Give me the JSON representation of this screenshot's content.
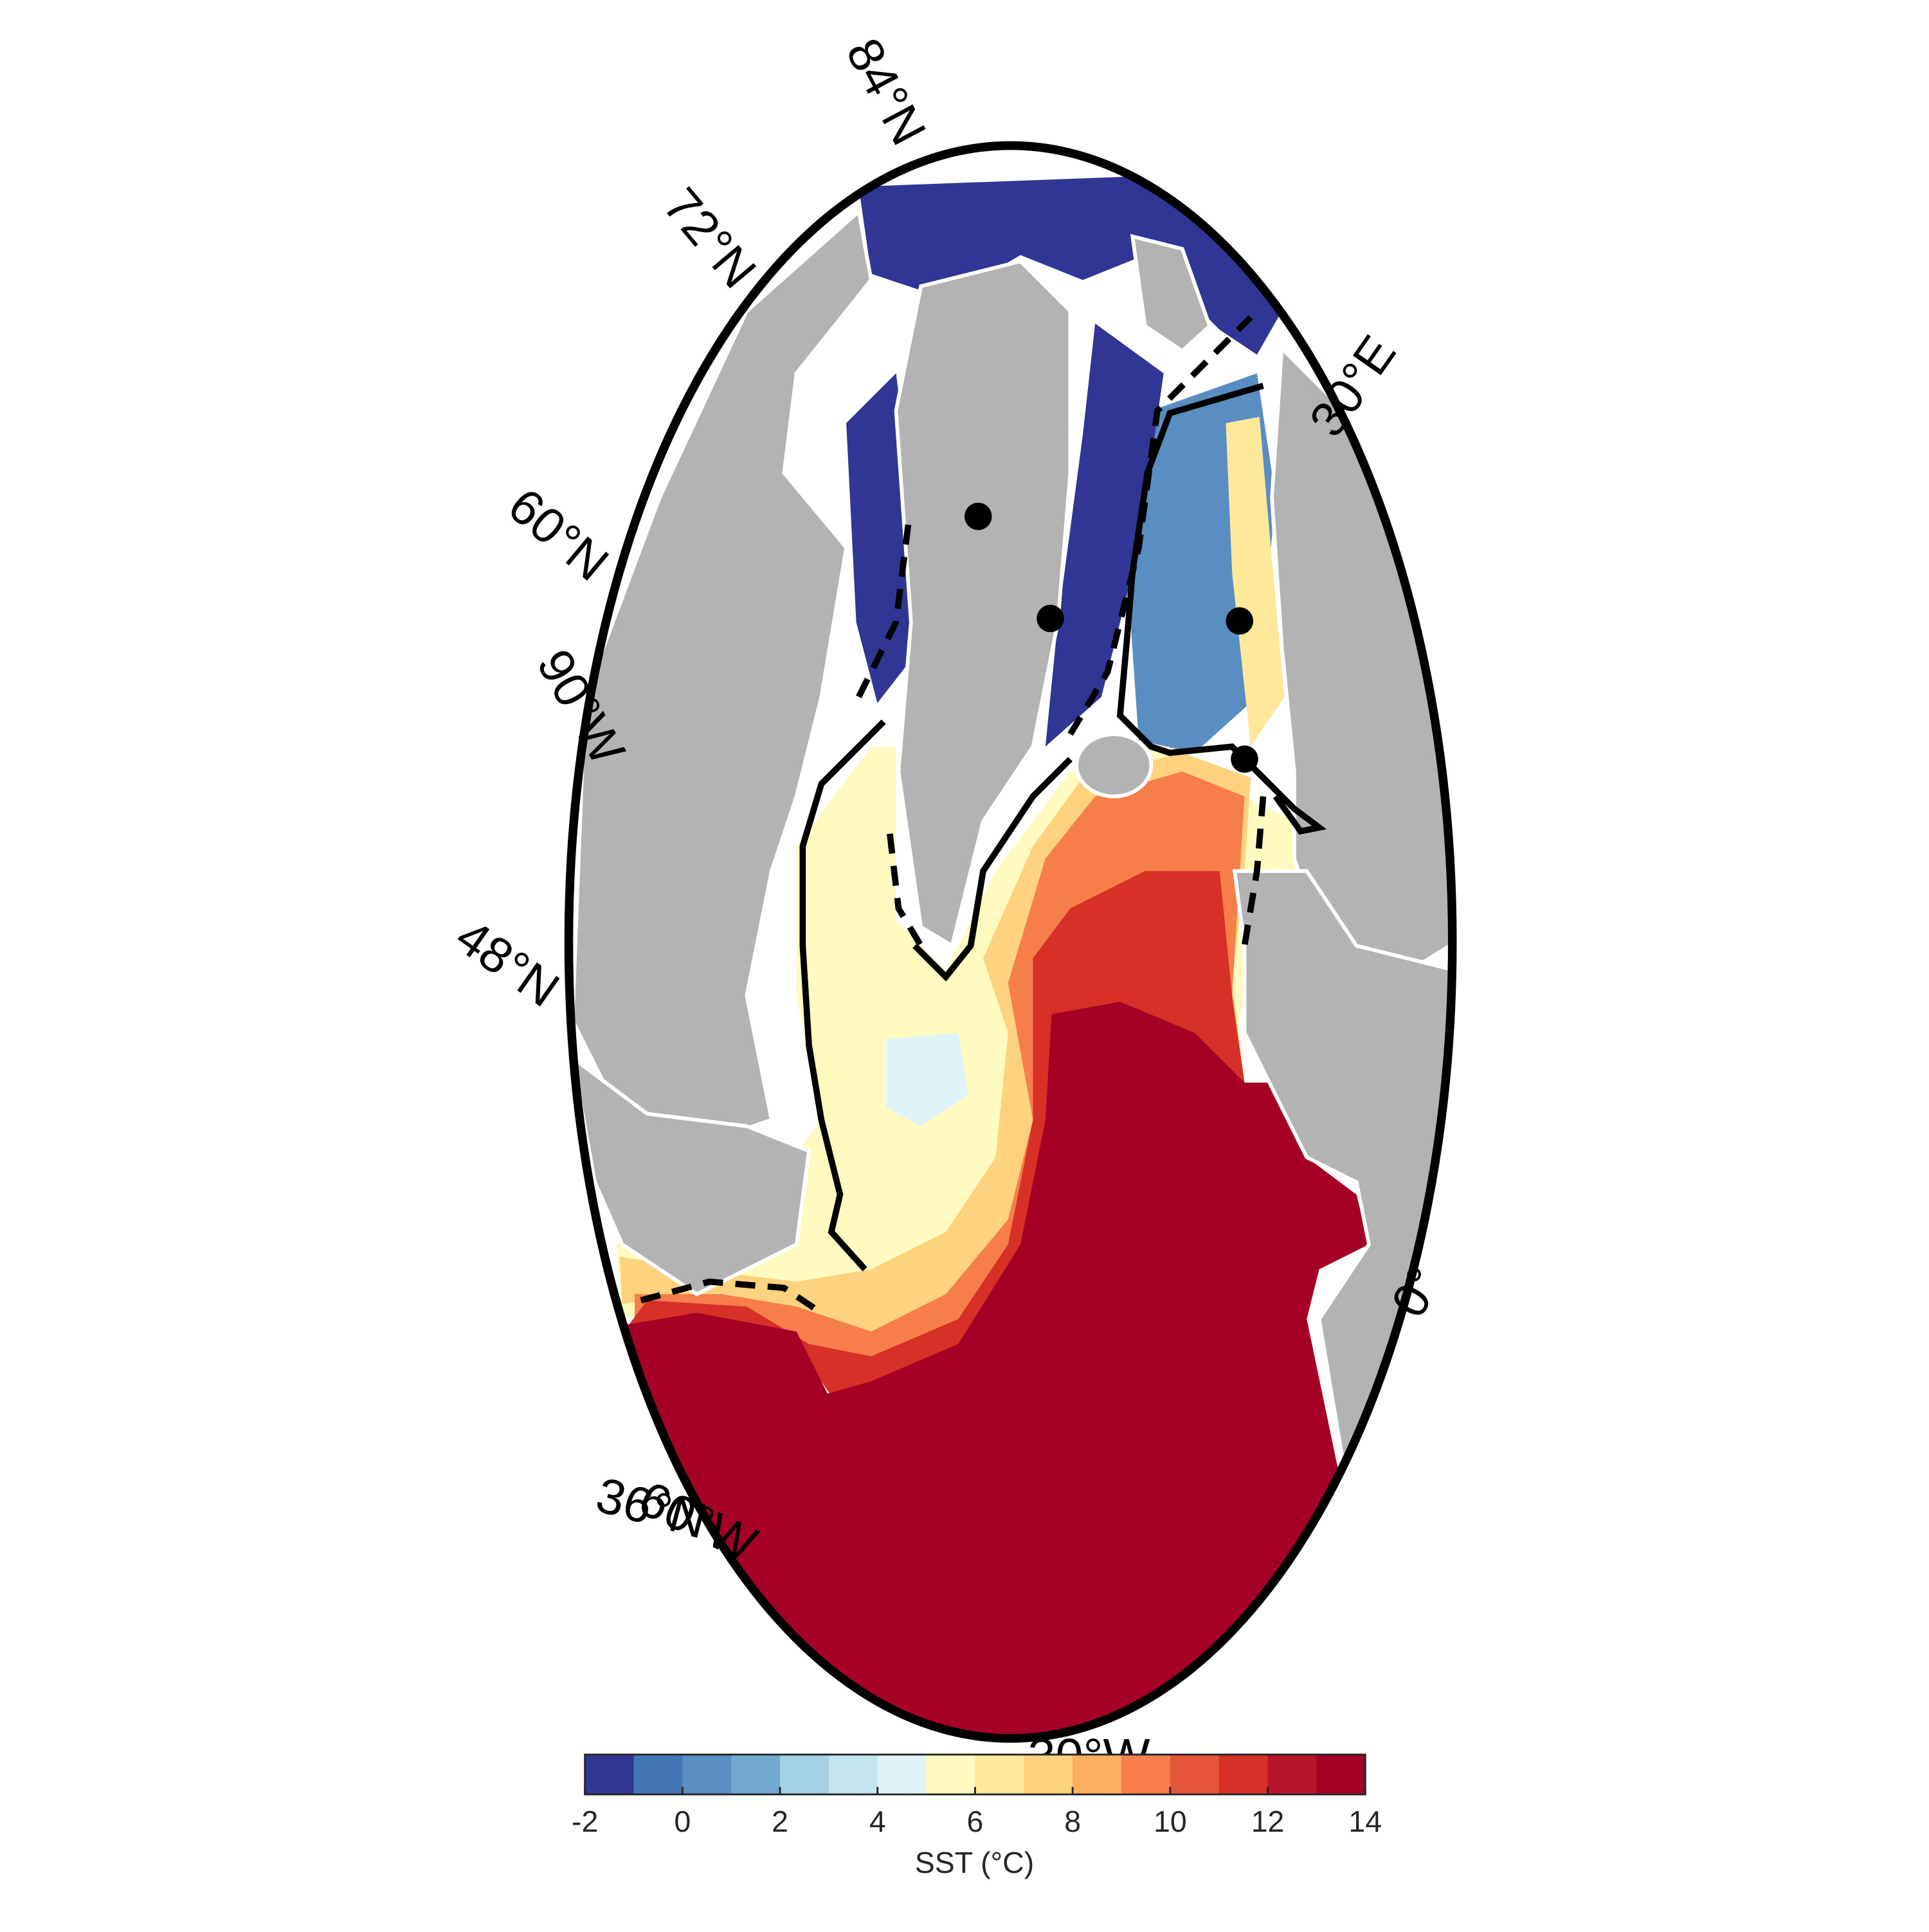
{
  "map": {
    "latitude_labels": [
      "84°N",
      "72°N",
      "60°N",
      "48°N",
      "36°N"
    ],
    "longitude_labels": [
      "90°W",
      "60°W",
      "30°W",
      "0°",
      "30°E"
    ]
  },
  "colorbar": {
    "label": "SST (°C)",
    "lim": [
      -2,
      14
    ],
    "ticks": [
      -2,
      0,
      2,
      4,
      6,
      8,
      10,
      12,
      14
    ],
    "colors": [
      "#313695",
      "#4575b4",
      "#5a8ec3",
      "#74a9cf",
      "#a3d2e5",
      "#c4e4ef",
      "#e0f3f8",
      "#fefac0",
      "#fee99a",
      "#fed27f",
      "#fdae61",
      "#f57e4a",
      "#e6553a",
      "#d73027",
      "#b5142b",
      "#a50026"
    ]
  }
}
